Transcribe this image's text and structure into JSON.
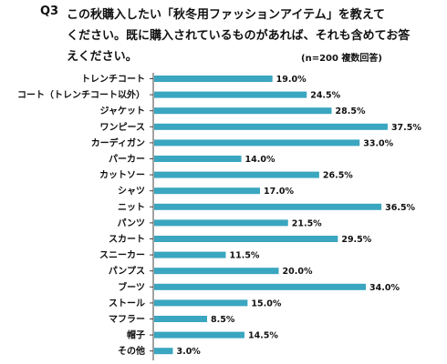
{
  "question": {
    "number": "Q3",
    "lines": [
      "この秋購入したい「秋冬用ファッションアイテム」を教えて",
      "ください。既に購入されているものがあれば、それも含めてお答",
      "えください。"
    ],
    "note": "(n=200 複数回答)"
  },
  "colors": {
    "bar": "#3aa6c0",
    "axis": "#444444",
    "text": "#111111"
  },
  "chart_data": {
    "type": "bar",
    "orientation": "horizontal",
    "categories": [
      "トレンチコート",
      "コート（トレンチコート以外）",
      "ジャケット",
      "ワンピース",
      "カーディガン",
      "パーカー",
      "カットソー",
      "シャツ",
      "ニット",
      "パンツ",
      "スカート",
      "スニーカー",
      "パンプス",
      "ブーツ",
      "ストール",
      "マフラー",
      "帽子",
      "その他"
    ],
    "values": [
      19.0,
      24.5,
      28.5,
      37.5,
      33.0,
      14.0,
      26.5,
      17.0,
      36.5,
      21.5,
      29.5,
      11.5,
      20.0,
      34.0,
      15.0,
      8.5,
      14.5,
      3.0
    ],
    "value_labels": [
      "19.0%",
      "24.5%",
      "28.5%",
      "37.5%",
      "33.0%",
      "14.0%",
      "26.5%",
      "17.0%",
      "36.5%",
      "21.5%",
      "29.5%",
      "11.5%",
      "20.0%",
      "34.0%",
      "15.0%",
      "8.5%",
      "14.5%",
      "3.0%"
    ],
    "xlim": [
      0,
      40
    ],
    "grid": false,
    "legend": "none"
  }
}
